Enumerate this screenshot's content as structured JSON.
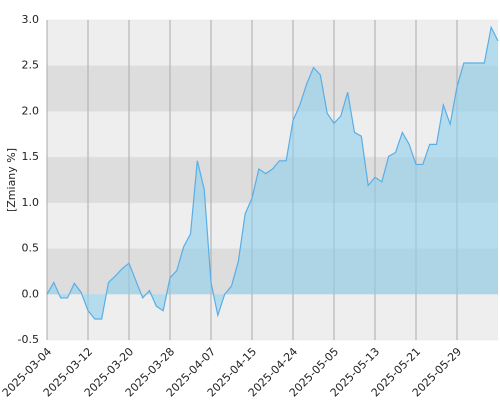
{
  "chart_data": {
    "type": "area",
    "y_label": "[Zmiany %]",
    "categories": [
      "2025-03-04",
      null,
      null,
      null,
      null,
      null,
      "2025-03-12",
      null,
      null,
      null,
      null,
      null,
      "2025-03-20",
      null,
      null,
      null,
      null,
      null,
      "2025-03-28",
      null,
      null,
      null,
      null,
      null,
      "2025-04-07",
      null,
      null,
      null,
      null,
      null,
      "2025-04-15",
      null,
      null,
      null,
      null,
      null,
      "2025-04-24",
      null,
      null,
      null,
      null,
      null,
      "2025-05-05",
      null,
      null,
      null,
      null,
      null,
      "2025-05-13",
      null,
      null,
      null,
      null,
      null,
      "2025-05-21",
      null,
      null,
      null,
      null,
      null,
      "2025-05-29",
      null,
      null,
      null,
      null,
      null,
      null
    ],
    "values": [
      0.0,
      0.13,
      -0.04,
      -0.04,
      0.12,
      0.02,
      -0.18,
      -0.27,
      -0.27,
      0.13,
      0.2,
      0.28,
      0.34,
      0.15,
      -0.04,
      0.04,
      -0.13,
      -0.18,
      0.18,
      0.26,
      0.52,
      0.66,
      1.46,
      1.15,
      0.13,
      -0.23,
      0.0,
      0.09,
      0.36,
      0.88,
      1.05,
      1.37,
      1.32,
      1.37,
      1.46,
      1.46,
      1.9,
      2.07,
      2.3,
      2.48,
      2.4,
      1.98,
      1.87,
      1.95,
      2.21,
      1.77,
      1.73,
      1.19,
      1.28,
      1.23,
      1.51,
      1.55,
      1.77,
      1.64,
      1.42,
      1.42,
      1.64,
      1.64,
      2.07,
      1.86,
      2.27,
      2.53,
      2.53,
      2.53,
      2.53,
      2.92,
      2.77
    ],
    "color": "#5aaee6",
    "ylim": [
      -0.5,
      3.0
    ],
    "yticks": [
      {
        "value": 3.0,
        "label": "3.0"
      },
      2.5,
      {
        "value": 2.0,
        "label": "2.0"
      },
      1.5,
      {
        "value": 1.0,
        "label": "1.0"
      },
      0.5,
      {
        "value": 0.0,
        "label": "0.0"
      },
      -0.5
    ],
    "grid": true
  }
}
